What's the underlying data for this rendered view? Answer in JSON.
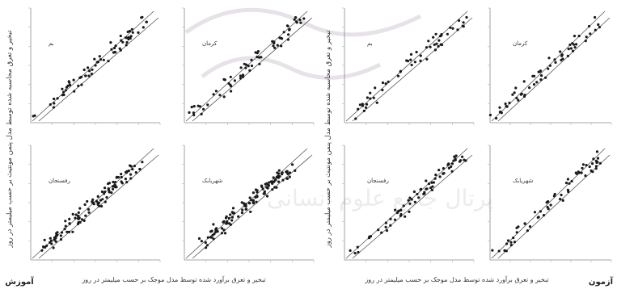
{
  "figure": {
    "y_label_left": "تبخیر و تعرق محاسبه شده توسط مدل پنمن مونتیث بر حسب میلیمتر در روز",
    "y_label_right": "تبخیر و تعرق محاسبه شده توسط مدل پنمن مونتیث بر حسب میلیمتر در روز",
    "x_label_left": "تبخیر و تعرق برآورد شده توسط مدل موجک بر حسب میلیمتر در روز",
    "x_label_right": "تبخیر و تعرق برآورد شده توسط مدل موجک بر حسب میلیمتر در روز",
    "group_left": "آموزش",
    "group_right": "آزمون",
    "watermark": "پرتال جامع علوم انسانی",
    "point_color": "#1a1a1a",
    "line_color": "#555555"
  },
  "chart_data": [
    {
      "type": "scatter",
      "title": "بم",
      "r2": "",
      "group": "آموزش",
      "points": []
    },
    {
      "type": "scatter",
      "title": "کرمان",
      "r2": "",
      "group": "آموزش",
      "points": []
    },
    {
      "type": "scatter",
      "title": "رفسنجان",
      "r2": "",
      "group": "آموزش",
      "points": []
    },
    {
      "type": "scatter",
      "title": "شهربابک",
      "r2": "",
      "group": "آموزش",
      "points": []
    },
    {
      "type": "scatter",
      "title": "بم",
      "r2": "",
      "group": "آزمون",
      "points": []
    },
    {
      "type": "scatter",
      "title": "کرمان",
      "r2": "",
      "group": "آزمون",
      "points": []
    },
    {
      "type": "scatter",
      "title": "رفسنجان",
      "r2": "",
      "group": "آزمون",
      "points": []
    },
    {
      "type": "scatter",
      "title": "شهربابک",
      "r2": "",
      "group": "آزمون",
      "points": []
    }
  ]
}
